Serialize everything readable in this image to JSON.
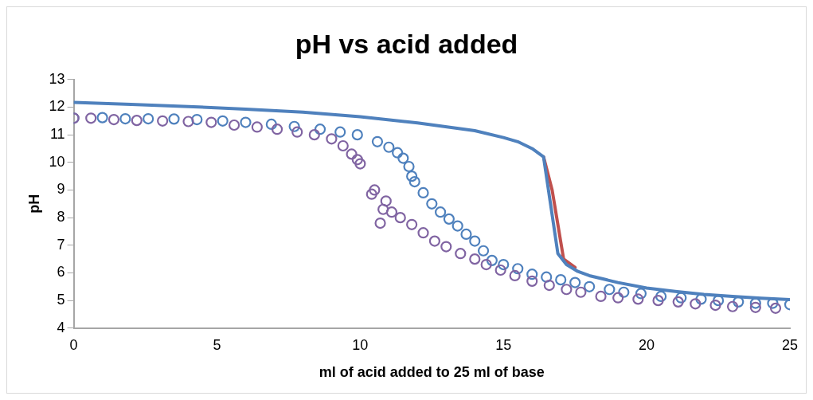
{
  "chart_data": {
    "type": "line",
    "title": "pH vs acid added",
    "xlabel": "ml of acid added to 25 ml of base",
    "ylabel": "pH",
    "xlim": [
      0,
      25
    ],
    "xticks": [
      0,
      5,
      10,
      15,
      20,
      25
    ],
    "ylim": [
      4,
      13
    ],
    "yticks": [
      4,
      5,
      6,
      7,
      8,
      9,
      10,
      11,
      12,
      13
    ],
    "grid": false,
    "legend": false,
    "series": [
      {
        "color": "#c0504d",
        "line_style": "solid",
        "marker": "none",
        "x": [
          16.4,
          16.7,
          17.1,
          17.5
        ],
        "values": [
          10.2,
          9.0,
          6.5,
          6.2
        ]
      },
      {
        "color": "#4f81bd",
        "line_style": "solid",
        "marker": "none",
        "x": [
          0,
          2,
          4,
          6,
          8,
          10,
          12,
          14,
          15,
          15.5,
          16,
          16.4,
          16.9,
          17.2,
          17.6,
          18,
          19,
          20,
          21,
          22,
          23,
          24,
          25
        ],
        "values": [
          12.17,
          12.1,
          12.02,
          11.93,
          11.82,
          11.65,
          11.43,
          11.15,
          10.9,
          10.75,
          10.5,
          10.2,
          6.7,
          6.3,
          6.05,
          5.9,
          5.65,
          5.45,
          5.33,
          5.22,
          5.15,
          5.08,
          5.03
        ]
      },
      {
        "type": "scatter",
        "color": "#4f81bd",
        "marker": "circle",
        "x": [
          0,
          1,
          1.8,
          2.6,
          3.5,
          4.3,
          5.2,
          6.0,
          6.9,
          7.7,
          8.6,
          9.3,
          9.9,
          10.6,
          11.0,
          11.3,
          11.5,
          11.7,
          11.8,
          11.9,
          12.2,
          12.5,
          12.8,
          13.1,
          13.4,
          13.7,
          14.0,
          14.3,
          14.6,
          15.0,
          15.5,
          16.0,
          16.5,
          17.0,
          17.5,
          18.0,
          18.7,
          19.2,
          19.8,
          20.5,
          21.2,
          21.9,
          22.5,
          23.2,
          23.8,
          24.4,
          25
        ],
        "values": [
          11.6,
          11.62,
          11.58,
          11.58,
          11.57,
          11.55,
          11.5,
          11.45,
          11.38,
          11.3,
          11.2,
          11.1,
          11.0,
          10.75,
          10.55,
          10.35,
          10.15,
          9.85,
          9.5,
          9.3,
          8.9,
          8.5,
          8.2,
          7.95,
          7.7,
          7.4,
          7.15,
          6.8,
          6.45,
          6.3,
          6.15,
          5.95,
          5.85,
          5.75,
          5.65,
          5.5,
          5.4,
          5.3,
          5.25,
          5.15,
          5.1,
          5.05,
          5.0,
          4.95,
          4.9,
          4.9,
          4.85
        ]
      },
      {
        "type": "scatter",
        "color": "#8064a2",
        "marker": "circle",
        "x": [
          0,
          0.6,
          1.4,
          2.2,
          3.1,
          4.0,
          4.8,
          5.6,
          6.4,
          7.1,
          7.8,
          8.4,
          9.0,
          9.4,
          9.7,
          9.9,
          10.0,
          10.4,
          10.5,
          10.9,
          10.8,
          10.7,
          11.1,
          11.4,
          11.8,
          12.2,
          12.6,
          13.0,
          13.5,
          14.0,
          14.4,
          14.9,
          15.4,
          16.0,
          16.6,
          17.2,
          17.7,
          18.4,
          19.0,
          19.7,
          20.4,
          21.1,
          21.7,
          22.4,
          23.0,
          23.8,
          24.5
        ],
        "values": [
          11.6,
          11.6,
          11.55,
          11.52,
          11.5,
          11.48,
          11.45,
          11.35,
          11.28,
          11.2,
          11.1,
          11.0,
          10.85,
          10.6,
          10.3,
          10.1,
          9.95,
          8.85,
          9.0,
          8.6,
          8.3,
          7.8,
          8.2,
          8.0,
          7.75,
          7.45,
          7.15,
          6.95,
          6.7,
          6.5,
          6.3,
          6.1,
          5.9,
          5.7,
          5.55,
          5.4,
          5.3,
          5.15,
          5.1,
          5.05,
          5.0,
          4.95,
          4.88,
          4.83,
          4.78,
          4.75,
          4.72
        ]
      }
    ]
  }
}
